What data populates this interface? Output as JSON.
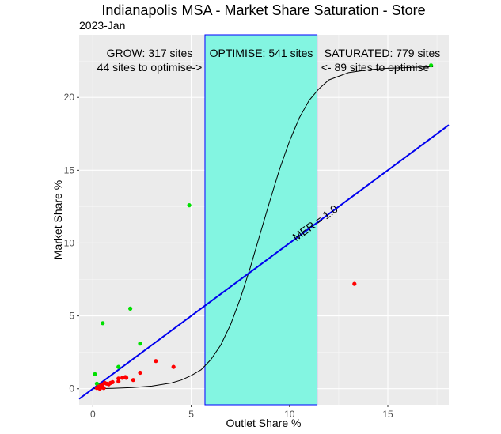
{
  "chart_data": {
    "type": "scatter",
    "title": "Indianapolis MSA - Market Share Saturation - Store",
    "subtitle": "2023-Jan",
    "xlabel": "Outlet Share %",
    "ylabel": "Market Share %",
    "xlim": [
      -0.7,
      18.1
    ],
    "ylim": [
      -1.1,
      24.3
    ],
    "xticks": [
      0,
      5,
      10,
      15
    ],
    "yticks": [
      0,
      5,
      10,
      15,
      20
    ],
    "grid": true,
    "optimise_band": [
      5.7,
      11.4
    ],
    "annotations": {
      "grow": "GROW: 317 sites",
      "grow_sub": "44 sites to optimise->",
      "optimise": "OPTIMISE: 541 sites",
      "saturated": "SATURATED: 779  sites",
      "saturated_sub": "<- 89  sites to optimise",
      "mer": "MER = 1.0"
    },
    "mer_line": {
      "x": [
        -0.7,
        18.1
      ],
      "y": [
        -0.7,
        18.1
      ]
    },
    "s_curve": {
      "x": [
        0,
        1,
        2,
        3,
        4,
        4.5,
        5,
        5.5,
        6,
        6.5,
        7,
        7.5,
        8,
        8.5,
        9,
        9.5,
        10,
        10.5,
        11,
        11.5,
        12,
        13,
        14,
        15,
        16,
        17,
        17.3
      ],
      "y": [
        0,
        0.03,
        0.08,
        0.18,
        0.4,
        0.6,
        0.9,
        1.3,
        2.0,
        3.0,
        4.4,
        6.2,
        8.3,
        10.6,
        12.9,
        15.1,
        17.0,
        18.6,
        19.8,
        20.6,
        21.2,
        21.7,
        21.9,
        22.0,
        22.05,
        22.1,
        22.1
      ]
    },
    "series": [
      {
        "color": "#00e000",
        "points": [
          [
            0.1,
            1.0
          ],
          [
            0.5,
            4.5
          ],
          [
            1.3,
            1.5
          ],
          [
            1.9,
            5.5
          ],
          [
            2.4,
            3.1
          ],
          [
            4.9,
            12.6
          ],
          [
            0.3,
            0.2
          ],
          [
            0.2,
            0.35
          ],
          [
            17.2,
            22.2
          ]
        ]
      },
      {
        "color": "#ff0000",
        "points": [
          [
            0.2,
            0.05
          ],
          [
            0.3,
            0.15
          ],
          [
            0.35,
            0.0
          ],
          [
            0.4,
            0.2
          ],
          [
            0.45,
            0.1
          ],
          [
            0.5,
            0.3
          ],
          [
            0.55,
            0.05
          ],
          [
            0.6,
            0.4
          ],
          [
            0.7,
            0.35
          ],
          [
            0.8,
            0.3
          ],
          [
            0.9,
            0.4
          ],
          [
            1.0,
            0.45
          ],
          [
            1.3,
            0.5
          ],
          [
            1.3,
            0.7
          ],
          [
            1.5,
            0.75
          ],
          [
            1.65,
            0.8
          ],
          [
            1.7,
            0.75
          ],
          [
            2.05,
            0.6
          ],
          [
            2.4,
            1.1
          ],
          [
            3.2,
            1.9
          ],
          [
            4.1,
            1.5
          ],
          [
            13.3,
            7.2
          ]
        ]
      }
    ],
    "colors": {
      "band": "#83f5e1",
      "band_edge": "#0000ff",
      "mer": "#0000ee",
      "panel": "#ebebeb",
      "grid": "#ffffff"
    }
  }
}
